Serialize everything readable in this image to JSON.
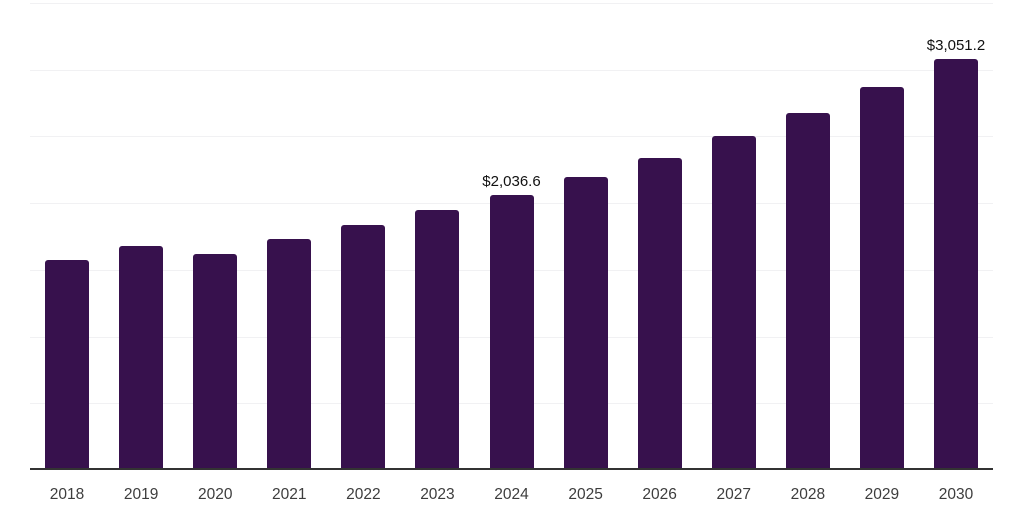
{
  "chart_data": {
    "type": "bar",
    "title": "",
    "xlabel": "",
    "ylabel": "",
    "categories": [
      "2018",
      "2019",
      "2020",
      "2021",
      "2022",
      "2023",
      "2024",
      "2025",
      "2026",
      "2027",
      "2028",
      "2029",
      "2030"
    ],
    "values": [
      1555,
      1655,
      1597,
      1712,
      1810,
      1926,
      2036.6,
      2168,
      2315,
      2478,
      2650,
      2845,
      3051.2
    ],
    "value_labels": [
      "",
      "",
      "",
      "",
      "",
      "",
      "$2,036.6",
      "",
      "",
      "",
      "",
      "",
      "$3,051.2"
    ],
    "ylim": [
      0,
      3500
    ],
    "gridline_interval": 500,
    "grid": "horizontal",
    "legend": "none",
    "colors": {
      "bar_fill": "#37114D",
      "gridline": "#f1f1f3",
      "axis_line": "#333333",
      "tick_label": "#3d3d3d",
      "value_label": "#111111",
      "background": "#ffffff"
    }
  }
}
